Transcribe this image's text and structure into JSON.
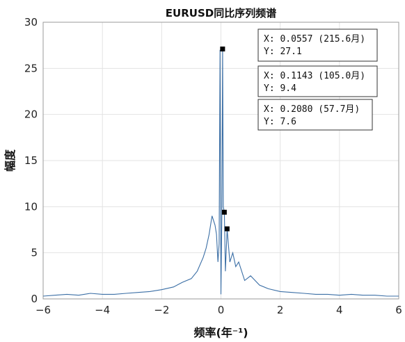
{
  "chart_data": {
    "type": "line",
    "title": "EURUSD同比序列频谱",
    "xlabel": "频率(年⁻¹)",
    "ylabel": "幅度",
    "xlim": [
      -6,
      6
    ],
    "ylim": [
      0,
      30
    ],
    "xticks": [
      "−6",
      "−4",
      "−2",
      "0",
      "2",
      "4",
      "6"
    ],
    "yticks": [
      "0",
      "5",
      "10",
      "15",
      "20",
      "25",
      "30"
    ],
    "grid": true,
    "line_color": "#3a6ea5",
    "marker_color": "#000000",
    "series": [
      {
        "x": [
          -6.0,
          -5.6,
          -5.2,
          -4.8,
          -4.4,
          -4.0,
          -3.6,
          -3.2,
          -2.8,
          -2.4,
          -2.0,
          -1.6,
          -1.3,
          -1.0,
          -0.8,
          -0.6,
          -0.5,
          -0.4,
          -0.3,
          -0.2,
          -0.15,
          -0.1,
          -0.06,
          -0.03,
          0.0,
          0.03,
          0.0557,
          0.08,
          0.1143,
          0.15,
          0.208,
          0.25,
          0.3,
          0.4,
          0.5,
          0.6,
          0.8,
          1.0,
          1.3,
          1.6,
          2.0,
          2.4,
          2.8,
          3.2,
          3.6,
          4.0,
          4.4,
          4.8,
          5.2,
          5.6,
          6.0
        ],
        "y": [
          0.3,
          0.4,
          0.5,
          0.4,
          0.6,
          0.5,
          0.5,
          0.6,
          0.7,
          0.8,
          1.0,
          1.3,
          1.8,
          2.2,
          3.0,
          4.5,
          5.5,
          7.0,
          9.0,
          8.0,
          7.0,
          4.0,
          6.0,
          27.0,
          0.5,
          9.0,
          27.1,
          10.0,
          9.4,
          3.0,
          7.6,
          6.0,
          4.0,
          5.0,
          3.5,
          4.0,
          2.0,
          2.5,
          1.5,
          1.1,
          0.8,
          0.7,
          0.6,
          0.5,
          0.5,
          0.4,
          0.5,
          0.4,
          0.4,
          0.3,
          0.3
        ]
      }
    ],
    "markers": [
      {
        "x": 0.0557,
        "y": 27.1
      },
      {
        "x": 0.1143,
        "y": 9.4
      },
      {
        "x": 0.208,
        "y": 7.6
      }
    ],
    "datatips": [
      {
        "line1": "X: 0.0557 (215.6月)",
        "line2": "Y: 27.1"
      },
      {
        "line1": "X: 0.1143 (105.0月)",
        "line2": "Y: 9.4"
      },
      {
        "line1": "X: 0.2080 (57.7月)",
        "line2": "Y: 7.6"
      }
    ]
  }
}
